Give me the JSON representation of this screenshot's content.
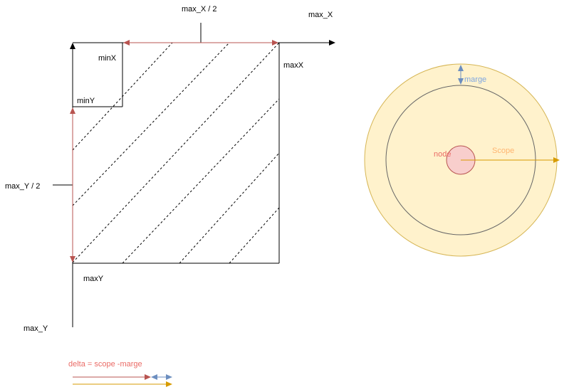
{
  "left_diagram": {
    "labels": {
      "max_x_half": "max_X / 2",
      "max_x": "max_X",
      "min_x": "minX",
      "max_x_corner": "maxX",
      "min_y": "minY",
      "max_y_half": "max_Y / 2",
      "max_y_corner": "maxY",
      "max_y": "max_Y"
    }
  },
  "right_diagram": {
    "labels": {
      "marge": "marge",
      "node": "node",
      "scope": "Scope"
    }
  },
  "legend": {
    "formula": "delta = scope -marge"
  },
  "colors": {
    "red_arrow": "#b85450",
    "blue_arrow": "#6c8ebf",
    "orange_arrow": "#d79b00",
    "scope_fill": "#fff2cc",
    "scope_stroke": "#d6b656",
    "node_fill": "#f8cecc",
    "node_stroke": "#b85450",
    "marge_text": "#7ea6e0",
    "node_text": "#ea6b66",
    "scope_text": "#ffb570"
  }
}
